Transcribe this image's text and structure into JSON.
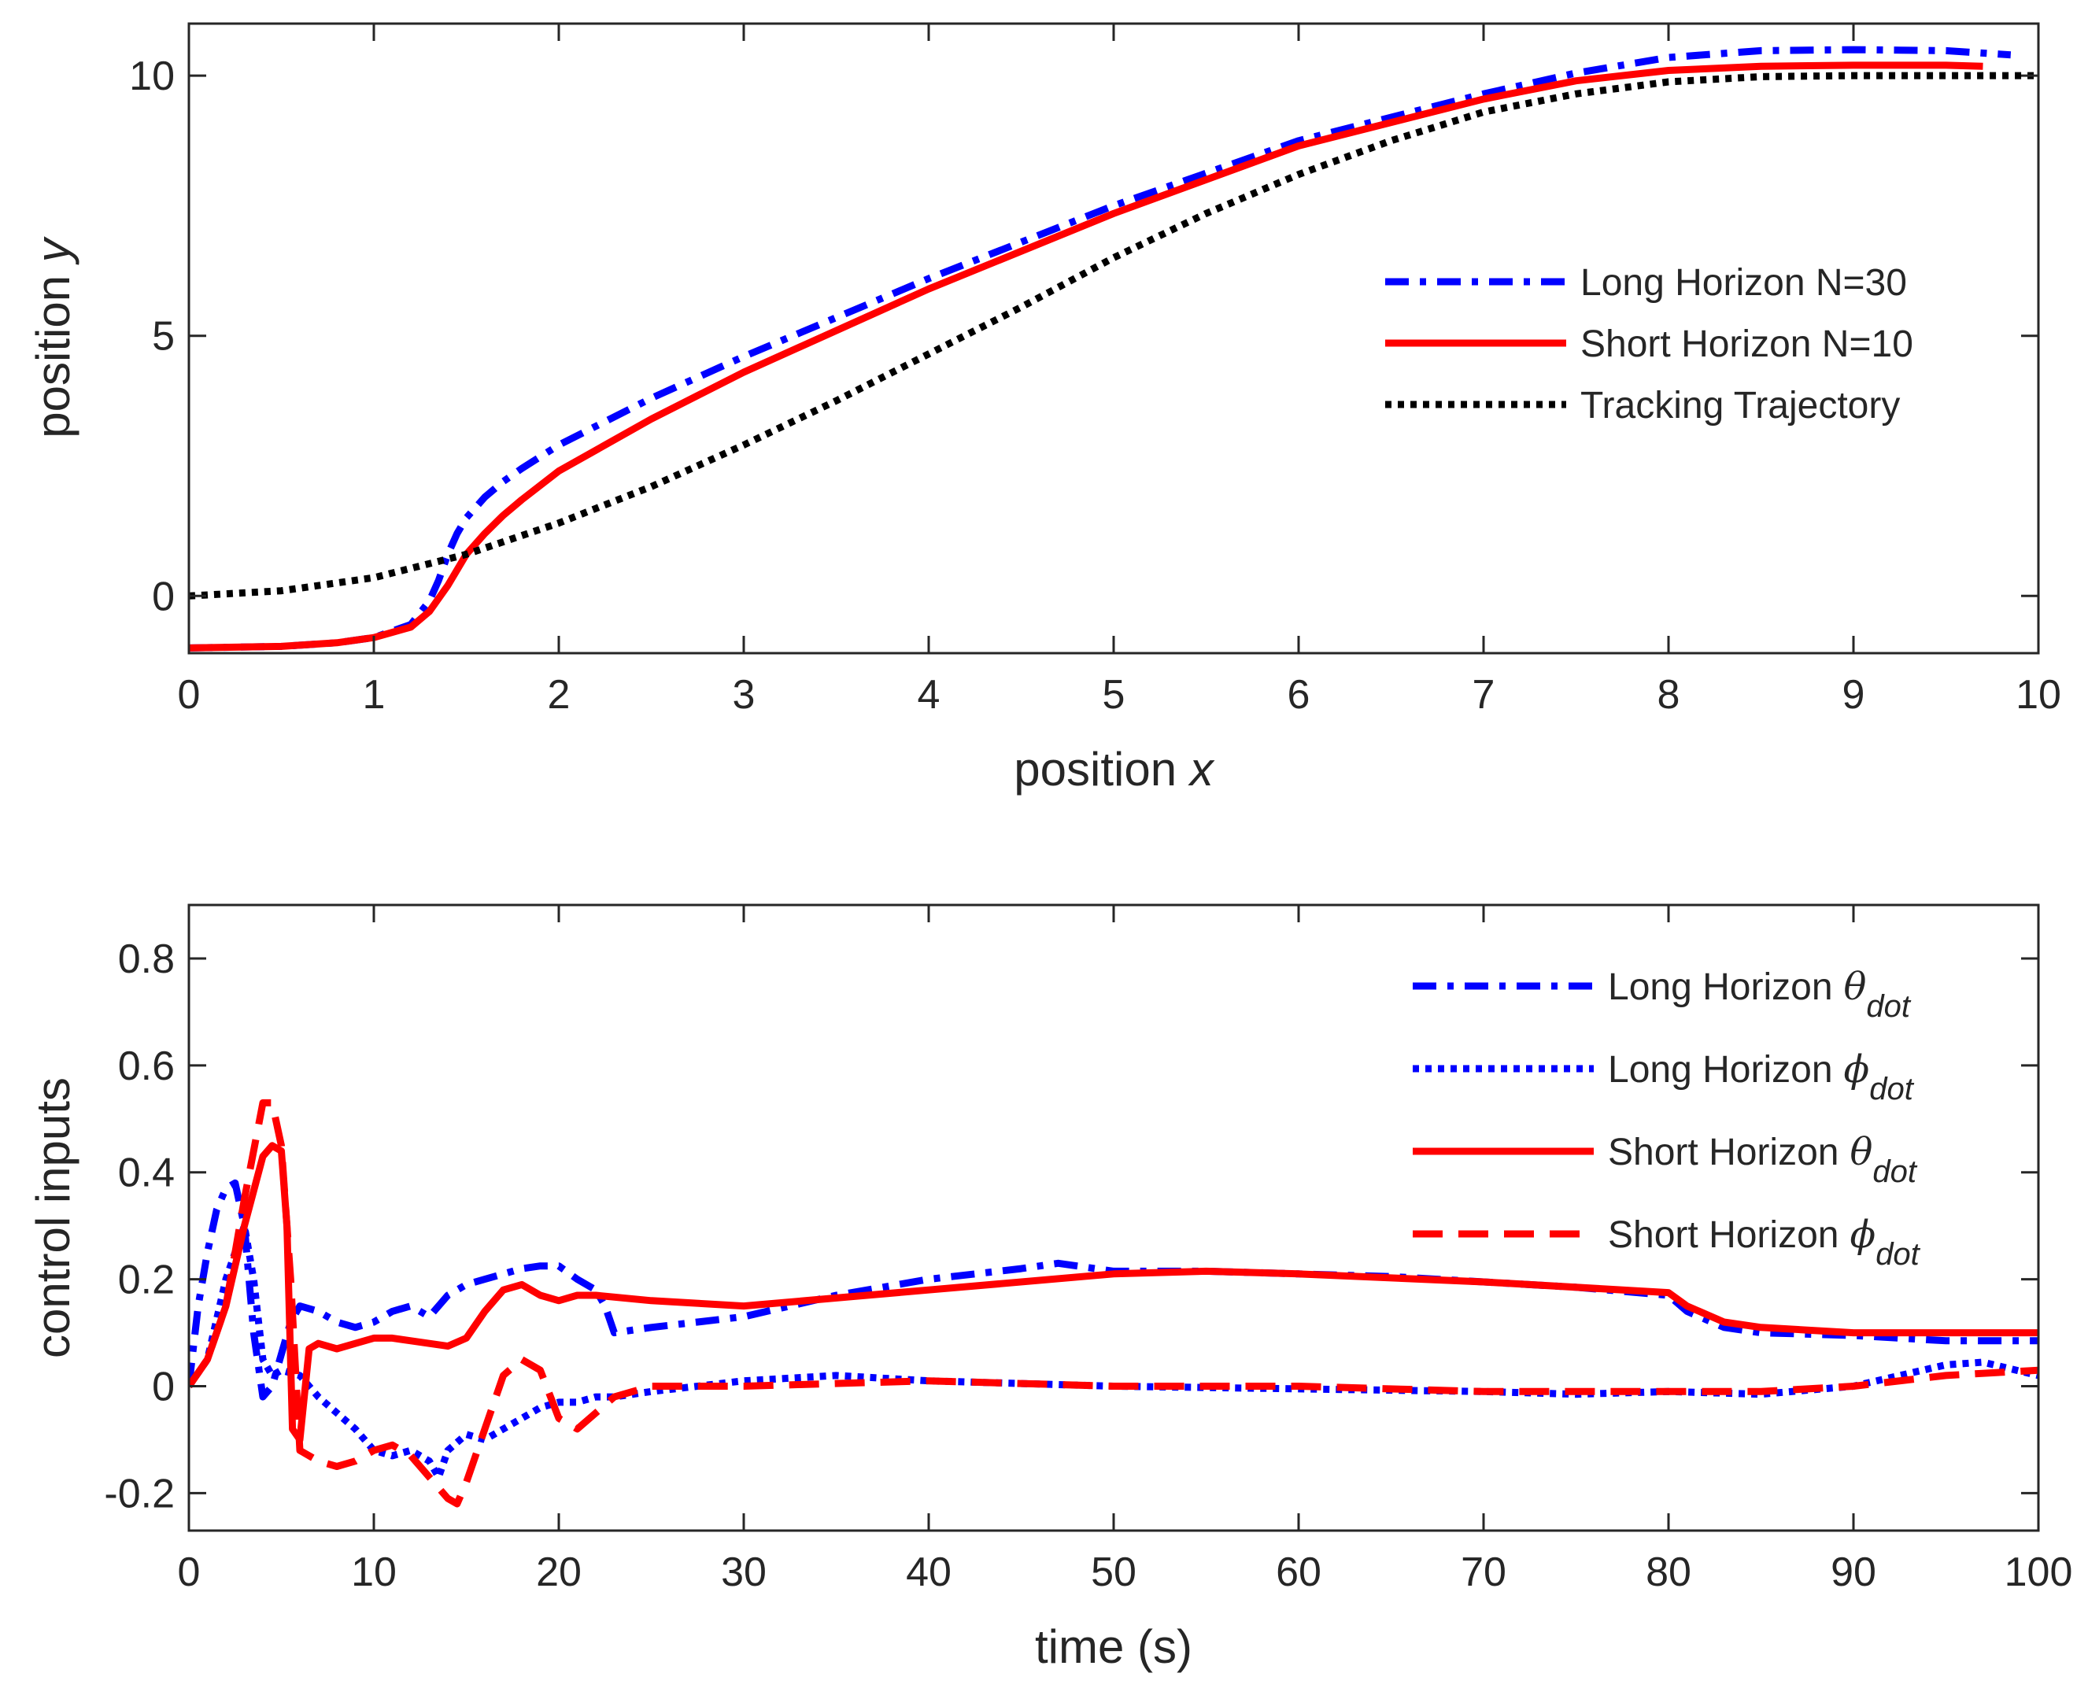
{
  "chart_data": [
    {
      "type": "line",
      "xlabel": "position",
      "xlabel_var": "x",
      "ylabel": "position",
      "ylabel_var": "y",
      "xlim": [
        0,
        10
      ],
      "ylim": [
        -1.1,
        11
      ],
      "xticks": [
        0,
        1,
        2,
        3,
        4,
        5,
        6,
        7,
        8,
        9,
        10
      ],
      "yticks": [
        0,
        5,
        10
      ],
      "legend_position": "right",
      "series": [
        {
          "name": "Long Horizon N=30",
          "color": "#0000ff",
          "style": "dashdot",
          "x": [
            0,
            0.5,
            0.8,
            1.0,
            1.2,
            1.3,
            1.35,
            1.4,
            1.45,
            1.5,
            1.55,
            1.6,
            1.7,
            1.8,
            2.0,
            2.5,
            3.0,
            4.0,
            5.0,
            6.0,
            7.0,
            7.5,
            8.0,
            8.5,
            9.0,
            9.5,
            9.85
          ],
          "y": [
            -1.0,
            -0.97,
            -0.9,
            -0.8,
            -0.55,
            -0.1,
            0.3,
            0.8,
            1.2,
            1.5,
            1.7,
            1.9,
            2.2,
            2.45,
            2.9,
            3.8,
            4.6,
            6.1,
            7.5,
            8.75,
            9.65,
            10.05,
            10.35,
            10.48,
            10.5,
            10.48,
            10.4
          ]
        },
        {
          "name": "Short Horizon N=10",
          "color": "#ff0000",
          "style": "solid",
          "x": [
            0,
            0.5,
            0.8,
            1.0,
            1.2,
            1.3,
            1.4,
            1.5,
            1.6,
            1.7,
            1.8,
            2.0,
            2.5,
            3.0,
            4.0,
            5.0,
            6.0,
            7.0,
            7.5,
            8.0,
            8.5,
            9.0,
            9.5,
            9.7
          ],
          "y": [
            -1.0,
            -0.97,
            -0.9,
            -0.8,
            -0.6,
            -0.3,
            0.2,
            0.8,
            1.2,
            1.55,
            1.85,
            2.4,
            3.4,
            4.3,
            5.9,
            7.35,
            8.65,
            9.55,
            9.9,
            10.1,
            10.18,
            10.2,
            10.2,
            10.18
          ]
        },
        {
          "name": "Tracking Trajectory",
          "color": "#000000",
          "style": "dotted",
          "x": [
            0,
            0.5,
            1.0,
            1.5,
            2.0,
            2.5,
            3.0,
            3.5,
            4.0,
            4.5,
            5.0,
            5.5,
            6.0,
            6.5,
            7.0,
            7.5,
            8.0,
            8.5,
            9.0,
            9.5,
            10.0
          ],
          "y": [
            0.0,
            0.1,
            0.35,
            0.8,
            1.4,
            2.1,
            2.9,
            3.75,
            4.65,
            5.55,
            6.5,
            7.35,
            8.1,
            8.75,
            9.3,
            9.65,
            9.88,
            9.98,
            10.0,
            10.0,
            10.0
          ]
        }
      ]
    },
    {
      "type": "line",
      "xlabel": "time (s)",
      "ylabel": "control inputs",
      "xlim": [
        0,
        100
      ],
      "ylim": [
        -0.27,
        0.9
      ],
      "xticks": [
        0,
        10,
        20,
        30,
        40,
        50,
        60,
        70,
        80,
        90,
        100
      ],
      "yticks": [
        -0.2,
        0,
        0.2,
        0.4,
        0.6,
        0.8
      ],
      "legend_position": "top-right",
      "series": [
        {
          "name": "Long Horizon",
          "symbol": "θ",
          "subscript": "dot",
          "color": "#0000ff",
          "style": "dashdot",
          "x": [
            0,
            0.5,
            1,
            1.5,
            2,
            2.5,
            3,
            3.5,
            4,
            4.5,
            5,
            5.5,
            6,
            7,
            8,
            9,
            10,
            11,
            12,
            13,
            14,
            15,
            16,
            17,
            18,
            19,
            20,
            21,
            22,
            22.5,
            23,
            25,
            30,
            35,
            40,
            45,
            47,
            50,
            55,
            60,
            65,
            70,
            75,
            80,
            81,
            83,
            85,
            90,
            95,
            100
          ],
          "y": [
            0.0,
            0.15,
            0.25,
            0.33,
            0.37,
            0.38,
            0.3,
            0.1,
            -0.02,
            0.0,
            0.06,
            0.12,
            0.15,
            0.14,
            0.12,
            0.11,
            0.12,
            0.14,
            0.15,
            0.13,
            0.17,
            0.19,
            0.2,
            0.21,
            0.22,
            0.225,
            0.225,
            0.2,
            0.18,
            0.15,
            0.1,
            0.11,
            0.13,
            0.17,
            0.2,
            0.22,
            0.23,
            0.215,
            0.215,
            0.21,
            0.205,
            0.195,
            0.185,
            0.17,
            0.14,
            0.11,
            0.1,
            0.095,
            0.085,
            0.085
          ]
        },
        {
          "name": "Long Horizon",
          "symbol": "ϕ",
          "subscript": "dot",
          "color": "#0000ff",
          "style": "dotted",
          "x": [
            0,
            1,
            2,
            3,
            3.5,
            4,
            4.5,
            5,
            6,
            7,
            8,
            9,
            10,
            11,
            12,
            13,
            13.5,
            14,
            15,
            16,
            17,
            18,
            19,
            20,
            21,
            22,
            23,
            25,
            30,
            35,
            40,
            50,
            60,
            70,
            75,
            80,
            85,
            90,
            95,
            97,
            100
          ],
          "y": [
            0.0,
            0.05,
            0.2,
            0.3,
            0.2,
            0.05,
            0.02,
            0.03,
            0.02,
            -0.02,
            -0.05,
            -0.08,
            -0.12,
            -0.13,
            -0.12,
            -0.14,
            -0.17,
            -0.12,
            -0.09,
            -0.1,
            -0.08,
            -0.06,
            -0.04,
            -0.03,
            -0.03,
            -0.02,
            -0.02,
            -0.01,
            0.01,
            0.02,
            0.01,
            0.0,
            -0.005,
            -0.01,
            -0.015,
            -0.01,
            -0.015,
            0.0,
            0.04,
            0.045,
            0.02
          ]
        },
        {
          "name": "Short Horizon",
          "symbol": "θ",
          "subscript": "dot",
          "color": "#ff0000",
          "style": "solid",
          "x": [
            0,
            1,
            2,
            3,
            4,
            4.5,
            5,
            5.3,
            5.6,
            6,
            6.5,
            7,
            8,
            9,
            10,
            11,
            12,
            13,
            14,
            15,
            16,
            17,
            18,
            19,
            20,
            21,
            22,
            25,
            30,
            40,
            50,
            55,
            60,
            70,
            80,
            81,
            83,
            85,
            90,
            95,
            100
          ],
          "y": [
            0.0,
            0.05,
            0.15,
            0.3,
            0.43,
            0.45,
            0.44,
            0.3,
            -0.08,
            -0.1,
            0.07,
            0.08,
            0.07,
            0.08,
            0.09,
            0.09,
            0.085,
            0.08,
            0.075,
            0.09,
            0.14,
            0.18,
            0.19,
            0.17,
            0.16,
            0.17,
            0.17,
            0.16,
            0.15,
            0.18,
            0.21,
            0.215,
            0.21,
            0.195,
            0.175,
            0.15,
            0.12,
            0.11,
            0.1,
            0.1,
            0.1
          ]
        },
        {
          "name": "Short Horizon",
          "symbol": "ϕ",
          "subscript": "dot",
          "color": "#ff0000",
          "style": "dashed",
          "x": [
            0,
            1,
            2,
            3,
            4,
            4.5,
            5,
            5.5,
            6,
            7,
            8,
            9,
            10,
            11,
            12,
            13,
            14,
            14.5,
            15,
            16,
            17,
            18,
            19,
            20,
            21,
            22,
            23,
            25,
            30,
            40,
            50,
            60,
            70,
            80,
            85,
            90,
            95,
            100
          ],
          "y": [
            0.0,
            0.05,
            0.15,
            0.35,
            0.53,
            0.53,
            0.45,
            0.2,
            -0.12,
            -0.14,
            -0.15,
            -0.14,
            -0.12,
            -0.11,
            -0.13,
            -0.17,
            -0.21,
            -0.22,
            -0.18,
            -0.08,
            0.02,
            0.05,
            0.03,
            -0.06,
            -0.08,
            -0.05,
            -0.02,
            0.0,
            0.0,
            0.01,
            0.0,
            0.0,
            -0.01,
            -0.01,
            -0.01,
            0.0,
            0.02,
            0.03
          ]
        }
      ]
    }
  ]
}
